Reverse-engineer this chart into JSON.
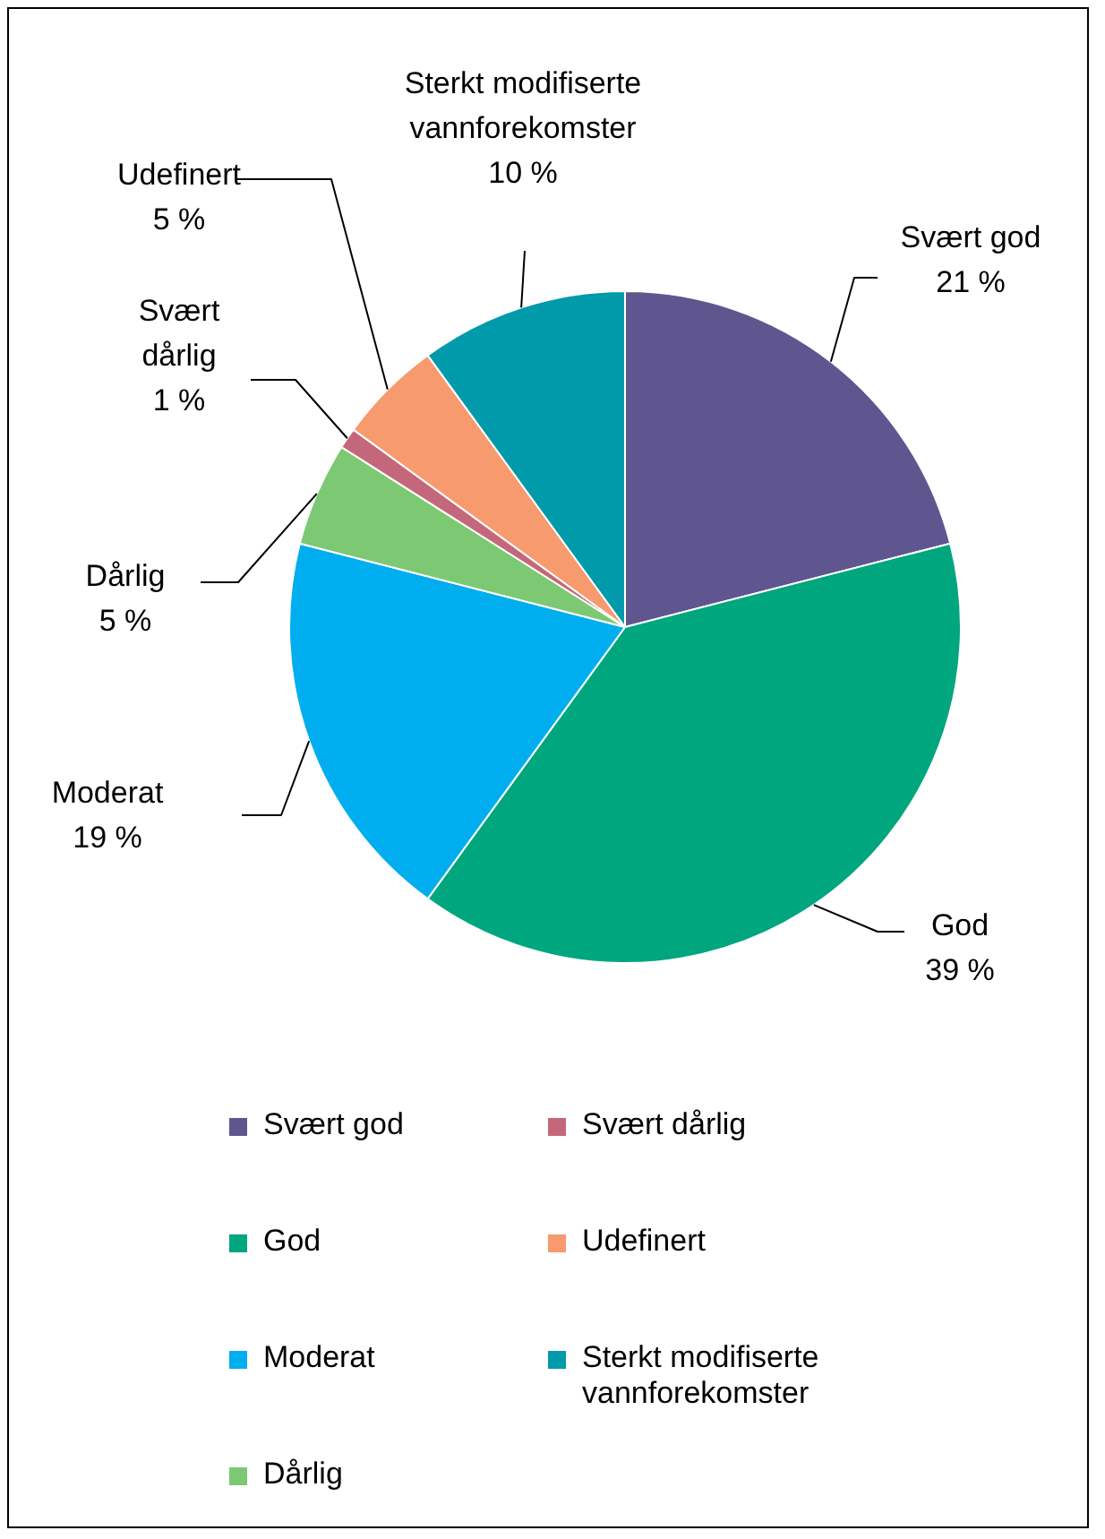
{
  "chart_data": {
    "type": "pie",
    "categories": [
      "Svært god",
      "God",
      "Moderat",
      "Dårlig",
      "Svært dårlig",
      "Udefinert",
      "Sterkt modifiserte vannforekomster"
    ],
    "values": [
      21,
      39,
      19,
      5,
      1,
      5,
      10
    ],
    "value_labels": [
      "21 %",
      "39 %",
      "19 %",
      "5 %",
      "1 %",
      "5 %",
      "10 %"
    ],
    "colors": [
      "#5f5690",
      "#00a67e",
      "#00aeef",
      "#7dc873",
      "#c5677a",
      "#f79a6e",
      "#009aab"
    ],
    "legend": "bottom"
  }
}
